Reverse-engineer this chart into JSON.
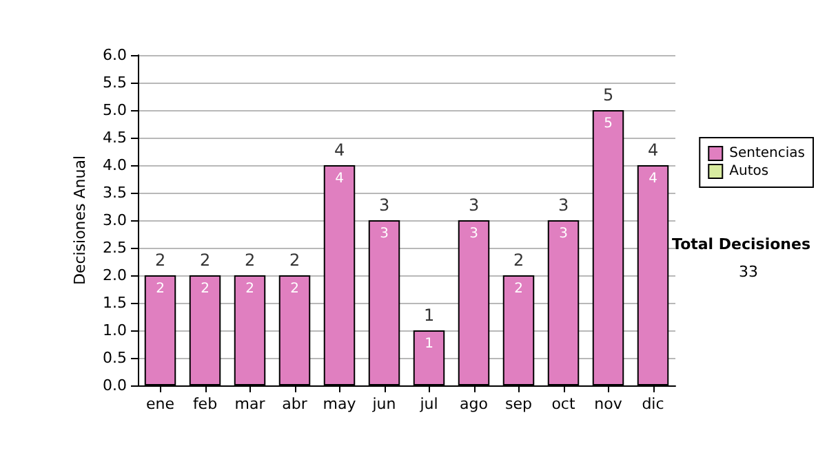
{
  "chart_data": {
    "type": "bar",
    "ylabel": "Decisiones Anual",
    "categories": [
      "ene",
      "feb",
      "mar",
      "abr",
      "may",
      "jun",
      "jul",
      "ago",
      "sep",
      "oct",
      "nov",
      "dic"
    ],
    "series": [
      {
        "name": "Sentencias",
        "color": "#e07fc0",
        "values": [
          2,
          2,
          2,
          2,
          4,
          3,
          1,
          3,
          2,
          3,
          5,
          4
        ]
      },
      {
        "name": "Autos",
        "color": "#d8eca0",
        "values": [
          null,
          null,
          null,
          null,
          null,
          null,
          null,
          null,
          null,
          null,
          null,
          null
        ]
      }
    ],
    "stacked": true,
    "data_labels": true,
    "totals": [
      "2",
      "2",
      "2",
      "2",
      "4",
      "3",
      "1",
      "3",
      "2",
      "3",
      "5",
      "4"
    ],
    "ylim": [
      0,
      6
    ],
    "yticks": [
      {
        "value": 0,
        "label": "0.0"
      },
      {
        "value": 0.5,
        "label": "0.5"
      },
      {
        "value": 1,
        "label": "1.0"
      },
      {
        "value": 1.5,
        "label": "1.5"
      },
      {
        "value": 2,
        "label": "2.0"
      },
      {
        "value": 2.5,
        "label": "2.5"
      },
      {
        "value": 3,
        "label": "3.0"
      },
      {
        "value": 3.5,
        "label": "3.5"
      },
      {
        "value": 4,
        "label": "4.0"
      },
      {
        "value": 4.5,
        "label": "4.5"
      },
      {
        "value": 5,
        "label": "5.0"
      },
      {
        "value": 5.5,
        "label": "5.5"
      },
      {
        "value": 6,
        "label": "6.0"
      }
    ],
    "grid": "y",
    "legend": "right",
    "annotations": [
      "Total Decisiones",
      "33"
    ]
  }
}
